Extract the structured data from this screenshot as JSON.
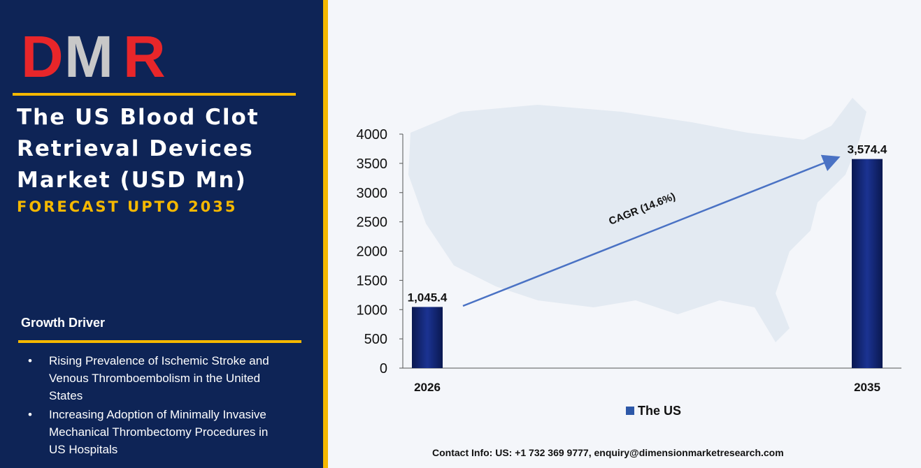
{
  "brand": {
    "logo_text": "DMR",
    "logo_colors": {
      "D": "#e8262a",
      "M": "#c8c8c8",
      "R": "#e8262a"
    }
  },
  "header": {
    "title_lines": [
      "The US Blood Clot",
      "Retrieval Devices",
      "Market (USD Mn)"
    ],
    "subtitle": "FORECAST UPTO 2035"
  },
  "growth_drivers": {
    "heading": "Growth Driver",
    "items": [
      {
        "lines": [
          "Rising Prevalence of Ischemic Stroke and",
          "Venous Thromboembolism in the United",
          "States"
        ]
      },
      {
        "lines": [
          "Increasing Adoption of Minimally Invasive",
          "Mechanical Thrombectomy Procedures in",
          "US Hospitals"
        ]
      }
    ]
  },
  "colors": {
    "panel_bg": "#0e2456",
    "accent": "#f5b800",
    "bar": "#0d1f6b",
    "arrow": "#4a72c4"
  },
  "chart_data": {
    "type": "bar",
    "categories": [
      "2026",
      "2035"
    ],
    "series": [
      {
        "name": "The US",
        "values": [
          1045.4,
          3574.4
        ]
      }
    ],
    "data_labels": [
      "1,045.4",
      "3,574.4"
    ],
    "ylim": [
      0,
      4000
    ],
    "yticks": [
      "0",
      "500",
      "1000",
      "1500",
      "2000",
      "2500",
      "3000",
      "3500",
      "4000"
    ],
    "annotation": "CAGR (14.6%)",
    "legend_position": "bottom",
    "background": "US map silhouette"
  },
  "footer": {
    "contact": "Contact Info: US: +1 732 369 9777, enquiry@dimensionmarketresearch.com"
  }
}
